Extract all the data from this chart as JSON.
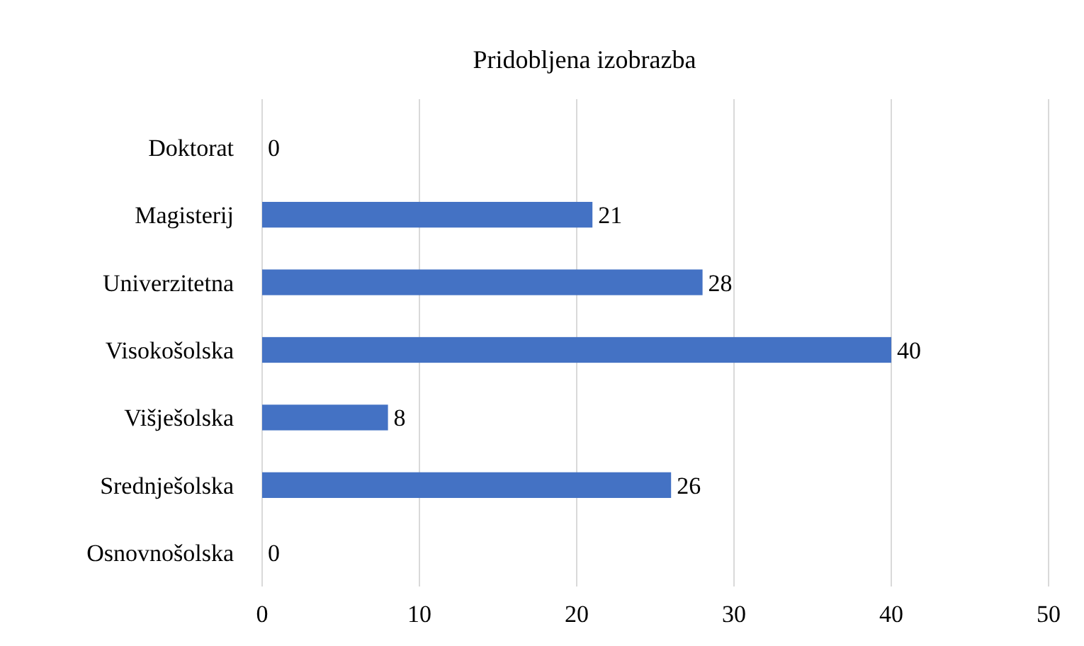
{
  "chart_data": {
    "type": "bar",
    "orientation": "horizontal",
    "title": "Pridobljena izobrazba",
    "categories": [
      "Doktorat",
      "Magisterij",
      "Univerzitetna",
      "Visokošolska",
      "Višješolska",
      "Srednješolska",
      "Osnovnošolska"
    ],
    "values": [
      0,
      21,
      28,
      40,
      8,
      26,
      0
    ],
    "color": "#4472c4",
    "xlim": [
      0,
      50
    ],
    "xticks": [
      0,
      10,
      20,
      30,
      40,
      50
    ],
    "grid": "x",
    "data_labels": true
  }
}
